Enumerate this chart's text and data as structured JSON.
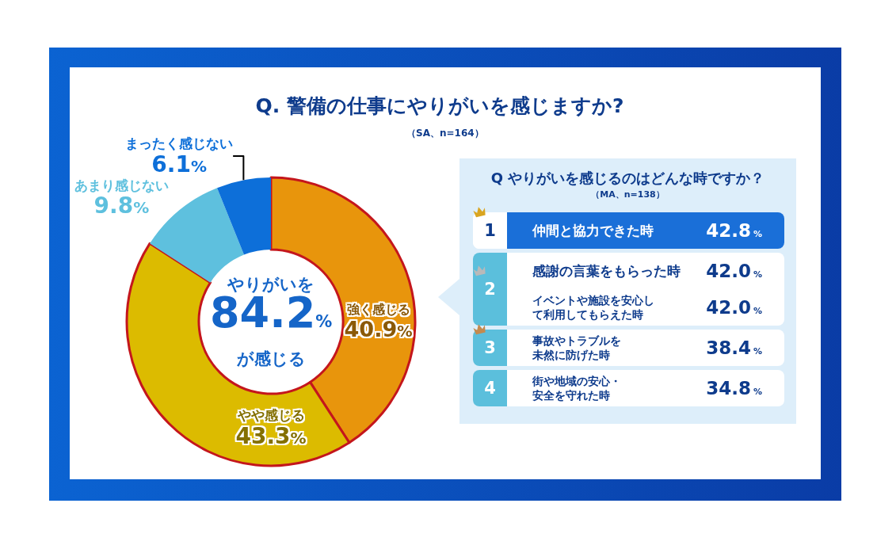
{
  "chart_data": [
    {
      "type": "donut",
      "title": "Q. 警備の仕事にやりがいを感じますか?",
      "subtitle": "（SA、n=164）",
      "categories": [
        "強く感じる",
        "やや感じる",
        "あまり感じない",
        "まったく感じない"
      ],
      "values": [
        40.9,
        43.3,
        9.8,
        6.1
      ],
      "value_labels": [
        "40.9%",
        "43.3%",
        "9.8%",
        "6.1%"
      ],
      "colors": [
        "#e8950c",
        "#dcbb00",
        "#5ec0de",
        "#0d6fd9"
      ],
      "annotations": [
        "やりがいを\n84.2%\nが感じる"
      ]
    },
    {
      "type": "other",
      "title": "Q やりがいを感じるのはどんな時ですか？",
      "subtitle": "（MA、n=138）",
      "categories": [
        "仲間と協力できた時",
        "感謝の言葉をもらった時",
        "イベントや施設を安心して利用してもらえた時",
        "事故やトラブルを未然に防げた時",
        "街や地域の安心・安全を守れた時"
      ],
      "values": [
        42.8,
        42.0,
        42.0,
        38.4,
        34.8
      ],
      "value_labels": [
        "42.8%",
        "42.0%",
        "42.0%",
        "38.4%",
        "34.8%"
      ],
      "annotations": [
        "1",
        "2",
        "3",
        "4"
      ]
    }
  ]
}
